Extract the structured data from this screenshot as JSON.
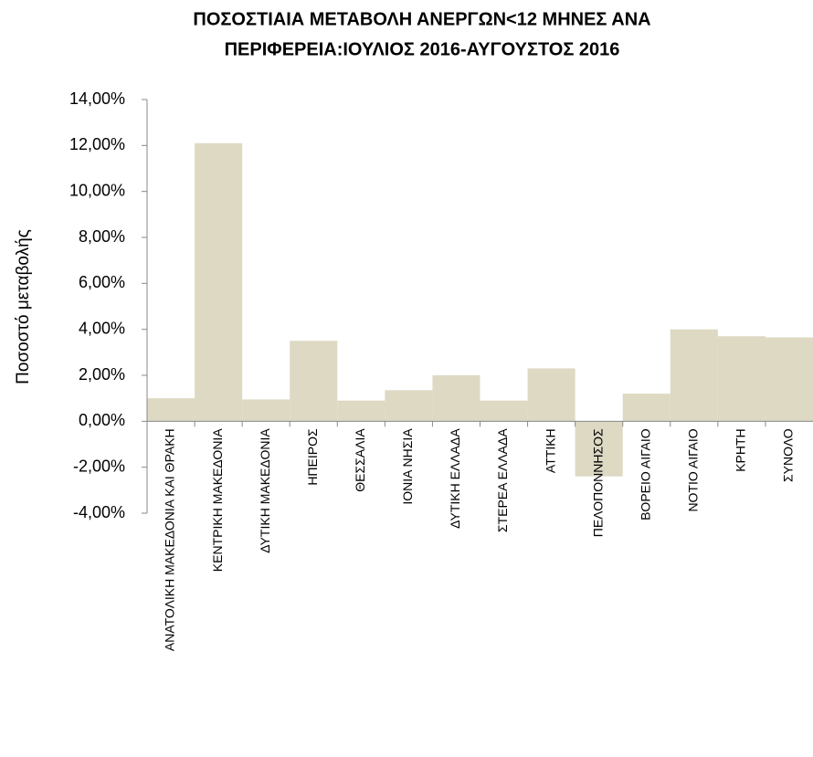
{
  "chart_data": {
    "type": "bar",
    "title": [
      "ΠΟΣΟΣΤΙΑΙΑ ΜΕΤΑΒΟΛΗ  ΑΝΕΡΓΩΝ<12 ΜΗΝΕΣ ΑΝΑ",
      "ΠΕΡΙΦΕΡΕΙΑ:ΙΟΥΛΙΟΣ 2016-ΑΥΓΟΥΣΤΟΣ 2016"
    ],
    "y_label": "Ποσοστό μεταβολής",
    "categories": [
      "ΑΝΑΤΟΛΙΚΗ ΜΑΚΕΔΟΝΙΑ ΚΑΙ ΘΡΑΚΗ",
      "ΚΕΝΤΡΙΚΗ ΜΑΚΕΔΟΝΙΑ",
      "ΔΥΤΙΚΗ ΜΑΚΕΔΟΝΙΑ",
      "ΗΠΕΙΡΟΣ",
      "ΘΕΣΣΑΛΙΑ",
      "ΙΟΝΙΑ ΝΗΣΙΑ",
      "ΔΥΤΙΚΗ ΕΛΛΑΔΑ",
      "ΣΤΕΡΕΑ ΕΛΛΑΔΑ",
      "ΑΤΤΙΚΗ",
      "ΠΕΛΟΠΟΝΝΗΣΟΣ",
      "ΒΟΡΕΙΟ ΑΙΓΑΙΟ",
      "ΝΟΤΙΟ ΑΙΓΑΙΟ",
      "ΚΡΗΤΗ",
      "ΣΥΝΟΛΟ"
    ],
    "values": [
      1.0,
      12.1,
      0.95,
      3.5,
      0.9,
      1.35,
      2.0,
      0.9,
      2.3,
      -2.4,
      1.2,
      4.0,
      3.7,
      3.65
    ],
    "color": "#ddd9c3",
    "ylim": [
      -4,
      14
    ],
    "yticks": [
      {
        "value": -4,
        "label": "-4,00%"
      },
      {
        "value": -2,
        "label": "-2,00%"
      },
      {
        "value": 0,
        "label": "0,00%"
      },
      {
        "value": 2,
        "label": "2,00%"
      },
      {
        "value": 4,
        "label": "4,00%"
      },
      {
        "value": 6,
        "label": "6,00%"
      },
      {
        "value": 8,
        "label": "8,00%"
      },
      {
        "value": 10,
        "label": "10,00%"
      },
      {
        "value": 12,
        "label": "12,00%"
      },
      {
        "value": 14,
        "label": "14,00%"
      }
    ],
    "grid": false
  }
}
